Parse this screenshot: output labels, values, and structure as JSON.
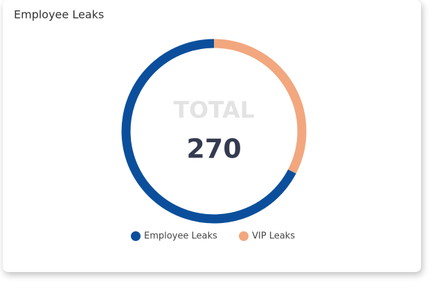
{
  "chart_data": {
    "type": "donut",
    "title": "Employee Leaks",
    "center_label": "TOTAL",
    "total": 270,
    "series": [
      {
        "name": "Employee Leaks",
        "color": "#0b4f9c",
        "value": 182
      },
      {
        "name": "VIP Leaks",
        "color": "#f2a77e",
        "value": 88
      }
    ]
  }
}
